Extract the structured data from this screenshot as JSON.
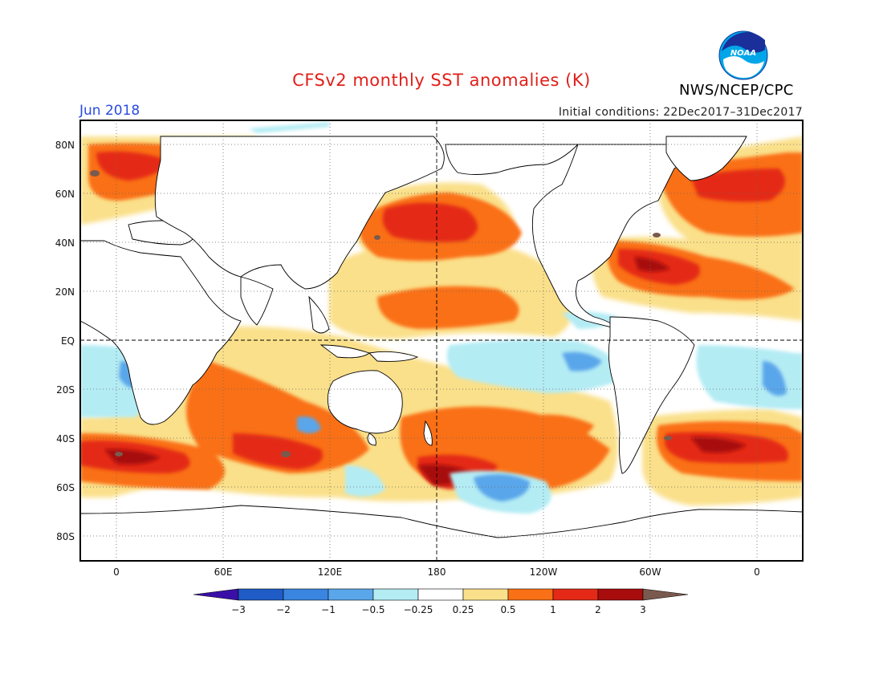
{
  "title": "CFSv2 monthly SST anomalies (K)",
  "month": "Jun 2018",
  "initial_conditions": "Initial conditions: 22Dec2017–31Dec2017",
  "agency": "NWS/NCEP/CPC",
  "logo_text": "NOAA",
  "lat_labels": [
    "80N",
    "60N",
    "40N",
    "20N",
    "EQ",
    "20S",
    "40S",
    "60S",
    "80S"
  ],
  "lon_labels": [
    "0",
    "60E",
    "120E",
    "180",
    "120W",
    "60W",
    "0"
  ],
  "colorbar": {
    "labels": [
      "−3",
      "−2",
      "−1",
      "−0.5",
      "−0.25",
      "0.25",
      "0.5",
      "1",
      "2",
      "3"
    ],
    "colors": [
      "#3a0fa8",
      "#1f5cc8",
      "#3a85e0",
      "#5aa6ea",
      "#b4ecf4",
      "#ffffff",
      "#fae08a",
      "#fa7016",
      "#e42a16",
      "#a80c0c",
      "#7a5a4e"
    ]
  },
  "colors": {
    "title": "#e0201a",
    "month": "#2a4be0",
    "land_outline": "#000000"
  }
}
